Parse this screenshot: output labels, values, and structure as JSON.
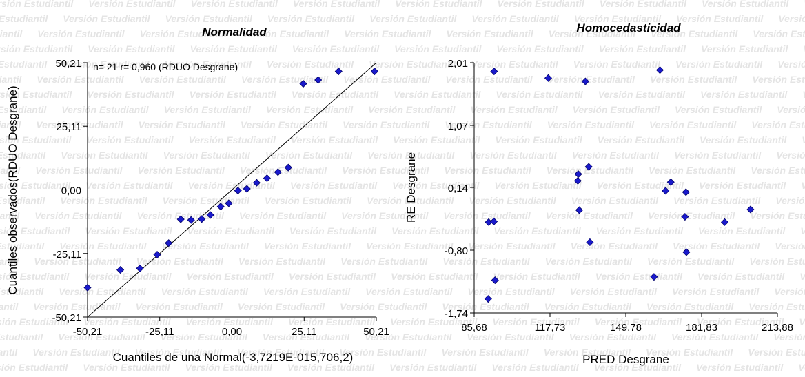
{
  "watermark": {
    "text": "Versión Estudiantil"
  },
  "colors": {
    "point": "#1a1acc",
    "point_stroke": "#000066",
    "line": "#000000",
    "axis": "#000000",
    "watermark": "#e4e4e4"
  },
  "chart_data": [
    {
      "type": "scatter",
      "title": "Normalidad",
      "xlabel": "Cuantiles de una Normal(-3,7219E-015,706,2)",
      "ylabel": "Cuantiles observados(RDUO Desgrane)",
      "annotation": "n= 21 r= 0,960 (RDUO Desgrane)",
      "xlim": [
        -50.21,
        50.21
      ],
      "ylim": [
        -50.21,
        50.21
      ],
      "xticks": [
        -50.21,
        -25.11,
        0.0,
        25.11,
        50.21
      ],
      "xtick_labels": [
        "-50,21",
        "-25,11",
        "0,00",
        "25,11",
        "50,21"
      ],
      "yticks": [
        -50.21,
        -25.11,
        0.0,
        25.11,
        50.21
      ],
      "ytick_labels": [
        "-50,21",
        "-25,11",
        "0,00",
        "25,11",
        "50,21"
      ],
      "reference_line": {
        "from": [
          -50.21,
          -50.21
        ],
        "to": [
          50.21,
          50.21
        ]
      },
      "points": [
        [
          -50.21,
          -38.6
        ],
        [
          -38.8,
          -31.6
        ],
        [
          -32.0,
          -31.0
        ],
        [
          -26.0,
          -25.6
        ],
        [
          -22.0,
          -21.0
        ],
        [
          -17.8,
          -11.6
        ],
        [
          -14.2,
          -11.9
        ],
        [
          -10.5,
          -11.5
        ],
        [
          -7.5,
          -9.9
        ],
        [
          -3.9,
          -6.6
        ],
        [
          -1.1,
          -5.3
        ],
        [
          2.1,
          -0.3
        ],
        [
          5.2,
          0.4
        ],
        [
          8.6,
          2.8
        ],
        [
          12.2,
          4.6
        ],
        [
          16.0,
          7.0
        ],
        [
          19.6,
          8.8
        ],
        [
          24.8,
          41.9
        ],
        [
          30.0,
          43.4
        ],
        [
          37.1,
          46.8
        ],
        [
          49.6,
          46.8
        ]
      ]
    },
    {
      "type": "scatter",
      "title": "Homocedasticidad",
      "xlabel": "PRED Desgrane",
      "ylabel": "RE Desgrane",
      "xlim": [
        85.68,
        213.88
      ],
      "ylim": [
        -1.74,
        2.01
      ],
      "xticks": [
        85.68,
        117.73,
        149.78,
        181.83,
        213.88
      ],
      "xtick_labels": [
        "85,68",
        "117,73",
        "149,78",
        "181,83",
        "213,88"
      ],
      "yticks": [
        -1.74,
        -0.8,
        0.14,
        1.07,
        2.01
      ],
      "ytick_labels": [
        "-1,74",
        "-0,80",
        "0,14",
        "1,07",
        "2,01"
      ],
      "points": [
        [
          94.1,
          1.88
        ],
        [
          117.0,
          1.78
        ],
        [
          132.7,
          1.73
        ],
        [
          164.2,
          1.9
        ],
        [
          129.7,
          0.34
        ],
        [
          129.5,
          0.24
        ],
        [
          134.1,
          0.45
        ],
        [
          130.1,
          -0.2
        ],
        [
          134.6,
          -0.68
        ],
        [
          166.6,
          0.09
        ],
        [
          168.8,
          0.22
        ],
        [
          175.2,
          0.07
        ],
        [
          174.8,
          -0.3
        ],
        [
          202.5,
          -0.19
        ],
        [
          191.6,
          -0.38
        ],
        [
          175.4,
          -0.83
        ],
        [
          91.8,
          -0.38
        ],
        [
          94.0,
          -0.37
        ],
        [
          94.5,
          -1.25
        ],
        [
          91.6,
          -1.53
        ],
        [
          161.7,
          -1.2
        ]
      ]
    }
  ]
}
